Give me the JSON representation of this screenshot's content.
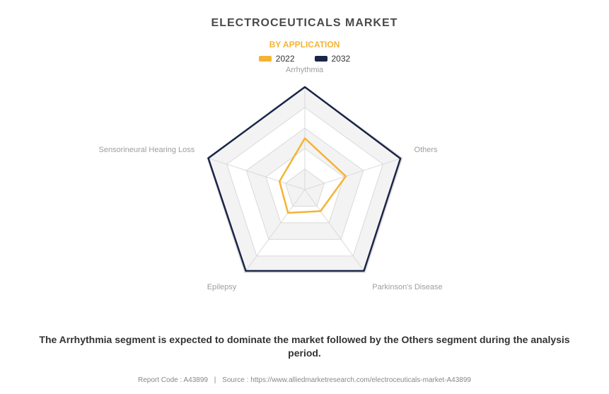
{
  "title": "ELECTROCEUTICALS MARKET",
  "subtitle": "BY APPLICATION",
  "subtitle_color": "#f5b334",
  "legend": [
    {
      "label": "2022",
      "color": "#f5b334"
    },
    {
      "label": "2032",
      "color": "#1a2547"
    }
  ],
  "radar": {
    "type": "radar",
    "categories": [
      "Arrhythmia",
      "Others",
      "Parkinson's Disease",
      "Epilepsy",
      "Sensorineural Hearing Loss"
    ],
    "rings": 5,
    "ring_max": 5,
    "radius": 145,
    "grid_stroke": "#d9d9d9",
    "grid_fill_odd": "#f3f3f3",
    "grid_fill_even": "#ffffff",
    "axis_color": "#d9d9d9",
    "label_color": "#9e9e9e",
    "label_fontsize": 11,
    "series": [
      {
        "name": "2022",
        "color": "#f5b334",
        "stroke_width": 2.5,
        "values": [
          2.5,
          2.1,
          1.3,
          1.4,
          1.3
        ]
      },
      {
        "name": "2032",
        "color": "#1a2547",
        "stroke_width": 2.5,
        "values": [
          5.0,
          4.9,
          4.9,
          4.9,
          4.95
        ]
      }
    ]
  },
  "caption": "The Arrhythmia segment is expected to dominate the market followed by the Others segment during the analysis period.",
  "footer": {
    "report_code_label": "Report Code :",
    "report_code": "A43899",
    "source_label": "Source :",
    "source": "https://www.alliedmarketresearch.com/electroceuticals-market-A43899"
  },
  "colors": {
    "title": "#4a4a4a",
    "caption": "#333333",
    "background": "#ffffff"
  }
}
